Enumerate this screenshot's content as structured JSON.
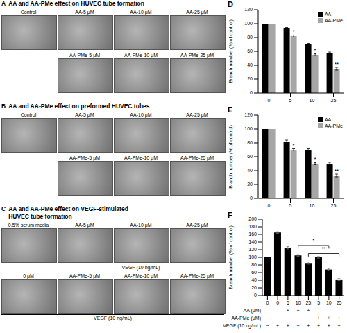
{
  "image_panels": [
    {
      "label": "A",
      "title": [
        "AA and AA-PMe effect on HUVEC tube formation"
      ],
      "rows": [
        {
          "images": [
            "Control",
            "AA-5 μM",
            "AA-10 μM",
            "AA-25 μM"
          ]
        },
        {
          "images": [
            null,
            "AA-PMe-5 μM",
            "AA-PMe-10 μM",
            "AA-PMe-25 μM"
          ]
        }
      ]
    },
    {
      "label": "B",
      "title": [
        "AA and AA-PMe effect on preformed HUVEC tubes"
      ],
      "rows": [
        {
          "images": [
            "Control",
            "AA-5 μM",
            "AA-10 μM",
            "AA-25 μM"
          ]
        },
        {
          "images": [
            null,
            "AA-PMe-5 μM",
            "AA-PMe-10 μM",
            "AA-PMe-25 μM"
          ]
        }
      ]
    },
    {
      "label": "C",
      "title": [
        "AA and AA-PMe effect on VEGF-stimulated",
        "HUVEC tube formation"
      ],
      "rows": [
        {
          "images": [
            "0.5% serum media",
            "AA-5 μM",
            "AA-10 μM",
            "AA-25 μM"
          ],
          "treatment": "VEGF (10 ng/mL)",
          "treated": [
            false,
            true,
            true,
            true
          ]
        },
        {
          "images": [
            "0 μM",
            "AA-PMe-5 μM",
            "AA-PMe-10 μM",
            "AA-PMe-25 μM"
          ],
          "treatment": "VEGF (10 ng/mL)",
          "treated": [
            true,
            true,
            true,
            true
          ]
        }
      ]
    }
  ],
  "chart_data": [
    {
      "label": "D",
      "type": "bar",
      "y_label": "Branch number (% of control)",
      "categories": [
        "0",
        "5",
        "10",
        "25"
      ],
      "series": [
        {
          "name": "AA",
          "color": "#000000",
          "values": [
            100,
            93,
            70,
            57
          ],
          "errors": [
            0,
            1.5,
            1.5,
            2
          ]
        },
        {
          "name": "AA-PMe",
          "color": "#a6a6a6",
          "values": [
            100,
            82,
            55,
            35
          ],
          "errors": [
            0,
            1.5,
            1.5,
            2
          ],
          "annotations": [
            null,
            "*",
            "*",
            "**"
          ]
        }
      ],
      "ylim": [
        0,
        120
      ],
      "yticks": [
        0,
        20,
        40,
        60,
        80,
        100,
        120
      ],
      "legend": "upper right"
    },
    {
      "label": "E",
      "type": "bar",
      "y_label": "Branch number (% of control)",
      "categories": [
        "0",
        "5",
        "10",
        "25"
      ],
      "series": [
        {
          "name": "AA",
          "color": "#000000",
          "values": [
            100,
            82,
            70,
            50
          ],
          "errors": [
            0,
            2,
            1.5,
            2
          ]
        },
        {
          "name": "AA-PMe",
          "color": "#a6a6a6",
          "values": [
            100,
            70,
            50,
            33
          ],
          "errors": [
            0,
            1.5,
            1.5,
            2
          ],
          "annotations": [
            null,
            "*",
            "*",
            "**"
          ]
        }
      ],
      "ylim": [
        0,
        120
      ],
      "yticks": [
        0,
        20,
        40,
        60,
        80,
        100,
        120
      ],
      "legend": "upper right"
    },
    {
      "label": "F",
      "type": "bar",
      "y_label": "Branch number (% of control)",
      "categories": [
        "0",
        "0",
        "5",
        "10",
        "25",
        "5",
        "10",
        "25"
      ],
      "values": [
        100,
        165,
        125,
        105,
        85,
        100,
        68,
        42
      ],
      "errors": [
        0,
        2,
        3,
        2,
        3,
        2,
        3,
        3
      ],
      "color": "#000000",
      "ylim": [
        0,
        200
      ],
      "yticks": [
        0,
        20,
        40,
        60,
        80,
        100,
        120,
        140,
        160,
        180,
        200
      ],
      "comparisons": [
        {
          "from": 3,
          "to": 6,
          "label": "*"
        },
        {
          "from": 4,
          "to": 7,
          "label": "**"
        }
      ],
      "condition_rows": [
        {
          "label": "AA (μM)",
          "marks": [
            null,
            null,
            "+",
            "+",
            "+",
            null,
            null,
            null
          ]
        },
        {
          "label": "AA-PMe (μM)",
          "marks": [
            null,
            null,
            null,
            null,
            null,
            "+",
            "+",
            "+"
          ]
        },
        {
          "label": "VEGF (10 ng/mL)",
          "marks": [
            "−",
            "+",
            "+",
            "+",
            "+",
            "+",
            "+",
            "+"
          ]
        }
      ]
    }
  ]
}
